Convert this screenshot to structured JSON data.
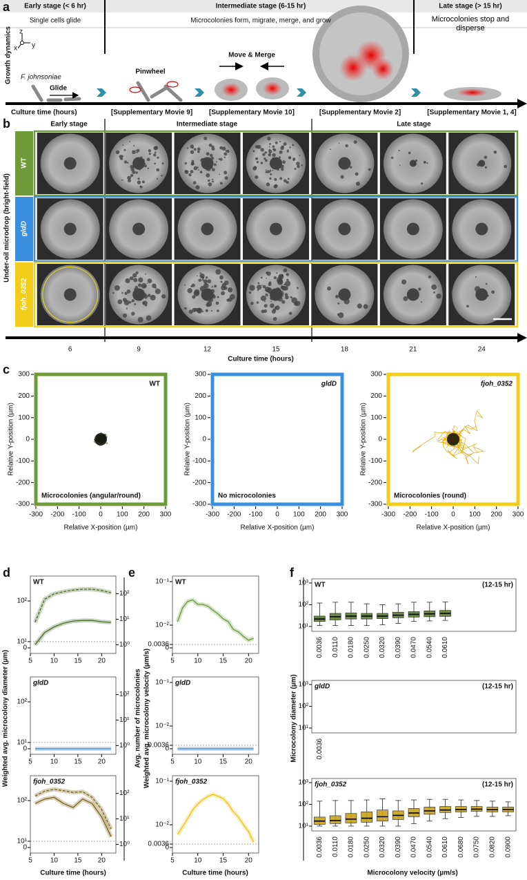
{
  "panel_a": {
    "label": "a",
    "stages": [
      {
        "title": "Early stage (< 6 hr)",
        "desc": "Single cells glide"
      },
      {
        "title": "Intermediate stage (6-15 hr)",
        "desc": "Microcolonies form, migrate, merge, and grow"
      },
      {
        "title": "Late stage (> 15 hr)",
        "desc": "Microcolonies stop and disperse"
      }
    ],
    "y_label": "Growth dynamics",
    "axis_labels": [
      "z",
      "x",
      "y"
    ],
    "organism": "F. johnsoniae",
    "steps": [
      "Glide",
      "Pinwheel",
      "Move & Merge"
    ],
    "x_label": "Culture time (hours)",
    "movies": [
      "[Supplementary Movie 9]",
      "[Supplementary Movie 10]",
      "[Supplementary Movie 2]",
      "[Supplementary Movie 1, 4]"
    ]
  },
  "panel_b": {
    "label": "b",
    "stages": [
      "Early stage",
      "Intermediate stage",
      "Late stage"
    ],
    "y_label": "Under-oil microdrop (bright-field)",
    "strains": [
      {
        "name": "WT",
        "color": "#6e9a3a"
      },
      {
        "name": "gldD",
        "color": "#3a8fde"
      },
      {
        "name": "fjoh_0352",
        "color": "#f2cd1a"
      }
    ],
    "times": [
      6,
      9,
      12,
      15,
      18,
      21,
      24
    ],
    "x_label": "Culture time (hours)"
  },
  "panel_c": {
    "label": "c",
    "plots": [
      {
        "name": "WT",
        "note": "Microcolonies (angular/round)",
        "color": "#6e9a3a",
        "trace": "#3f5f1c"
      },
      {
        "name": "gldD",
        "note": "No microcolonies",
        "color": "#3a8fde",
        "trace": null
      },
      {
        "name": "fjoh_0352",
        "note": "Microcolonies (round)",
        "color": "#f2cd1a",
        "trace": "#e0a800"
      }
    ],
    "xlim": [
      -300,
      300
    ],
    "ylim": [
      -300,
      300
    ],
    "xticks": [
      -300,
      -200,
      -100,
      0,
      100,
      200,
      300
    ],
    "yticks": [
      -300,
      -200,
      -100,
      0,
      100,
      200,
      300
    ],
    "x_label": "Relative X-position (µm)",
    "y_label": "Relative Y-position (µm)"
  },
  "panel_d": {
    "label": "d",
    "y_label": "Weighted avg. microcolony diameter (µm)",
    "y2_label": "Avg. number of microcolonies",
    "x_label": "Culture time (hours)",
    "xlim": [
      5,
      23
    ],
    "xticks": [
      5,
      10,
      15,
      20
    ],
    "ylim": [
      7,
      300
    ],
    "yticks": [
      {
        "value": 0,
        "label": "0"
      },
      {
        "value": 10,
        "label": "10¹"
      },
      {
        "value": 100,
        "label": "10²"
      }
    ],
    "y2lim": [
      0.75,
      300
    ],
    "y2ticks": [
      {
        "value": 1,
        "label": "10⁰"
      },
      {
        "value": 10,
        "label": "10¹"
      },
      {
        "value": 100,
        "label": "10²"
      }
    ],
    "x": [
      6,
      8,
      10,
      12,
      14,
      16,
      18,
      20,
      22
    ],
    "plots": [
      {
        "name": "WT",
        "series": [
          {
            "axis": "y",
            "color": "#4a6b2a",
            "dashed": true,
            "values": [
              30,
              110,
              150,
              170,
              185,
              195,
              195,
              180,
              160
            ]
          },
          {
            "axis": "y2",
            "color": "#4a6b2a",
            "dashed": false,
            "values": [
              1,
              3,
              5,
              7,
              8.5,
              9,
              9,
              8,
              7.5
            ]
          }
        ]
      },
      {
        "name": "gldD",
        "series": [
          {
            "axis": "y",
            "color": "#3a7fd0",
            "dashed": false,
            "values": [
              0,
              0,
              0,
              0,
              0,
              0,
              0,
              0,
              0
            ]
          }
        ]
      },
      {
        "name": "fjoh_0352",
        "series": [
          {
            "axis": "y",
            "color": "#7a6415",
            "dashed": true,
            "values": [
              130,
              170,
              190,
              175,
              160,
              165,
              120,
              60,
              20
            ]
          },
          {
            "axis": "y2",
            "color": "#7a6415",
            "dashed": false,
            "values": [
              40,
              60,
              70,
              40,
              28,
              60,
              40,
              12,
              2
            ]
          }
        ]
      }
    ]
  },
  "panel_e": {
    "label": "e",
    "y_label": "Weighted avg. microcolony velocity (µm/s)",
    "x_label": "Culture time (hours)",
    "xlim": [
      5,
      22
    ],
    "xticks": [
      5,
      10,
      15,
      20
    ],
    "ylim": [
      0.003,
      0.1
    ],
    "yticks": [
      {
        "value": 0,
        "label": "0"
      },
      0.0036,
      {
        "value": 0.01,
        "label": "10⁻²"
      },
      {
        "value": 0.1,
        "label": "10⁻¹"
      }
    ],
    "x": [
      6,
      7,
      8,
      9,
      10,
      11,
      12,
      13,
      14,
      15,
      16,
      17,
      18,
      19,
      20,
      21
    ],
    "plots": [
      {
        "name": "WT",
        "series": [
          {
            "color": "#6e9a3a",
            "values": [
              0.012,
              0.025,
              0.035,
              0.038,
              0.03,
              0.03,
              0.027,
              0.022,
              0.018,
              0.014,
              0.012,
              0.008,
              0.007,
              0.0055,
              0.0045,
              0.005
            ]
          }
        ]
      },
      {
        "name": "gldD",
        "series": [
          {
            "color": "#3a7fd0",
            "values": [
              0,
              0,
              0,
              0,
              0,
              0,
              0,
              0,
              0,
              0,
              0,
              0,
              0,
              0,
              0,
              0
            ]
          }
        ]
      },
      {
        "name": "fjoh_0352",
        "series": [
          {
            "color": "#f0c419",
            "values": [
              0.006,
              0.009,
              0.014,
              0.022,
              0.03,
              0.038,
              0.045,
              0.05,
              0.045,
              0.04,
              0.03,
              0.02,
              0.015,
              0.01,
              0.007,
              0.004
            ]
          }
        ]
      }
    ]
  },
  "panel_f": {
    "label": "f",
    "y_label": "Microcolony diameter (µm)",
    "x_label": "Microcolony velocity (µm/s)",
    "ylim": [
      8,
      1000
    ],
    "yticks": [
      {
        "value": 10,
        "label": "10¹"
      },
      {
        "value": 100,
        "label": "10²"
      },
      {
        "value": 1000,
        "label": "10³"
      }
    ],
    "plots": [
      {
        "name": "WT",
        "note": "(12-15 hr)",
        "color": "#5d7d32",
        "categories": [
          "0.0036",
          "0.0110",
          "0.0180",
          "0.0250",
          "0.0320",
          "0.0390",
          "0.0470",
          "0.0540",
          "0.0610"
        ],
        "median": [
          22,
          28,
          30,
          30,
          30,
          33,
          36,
          38,
          40
        ],
        "q1": [
          17,
          20,
          22,
          22,
          23,
          25,
          27,
          28,
          29
        ],
        "q3": [
          30,
          40,
          42,
          40,
          40,
          45,
          48,
          52,
          55
        ],
        "low": [
          11,
          11,
          11,
          11,
          12,
          14,
          17,
          18,
          19
        ],
        "high": [
          120,
          130,
          130,
          110,
          100,
          110,
          130,
          130,
          135
        ]
      },
      {
        "name": "gldD",
        "note": "(12-15 hr)",
        "color": "#3a7fd0",
        "categories": [
          "0.0036"
        ],
        "median": [
          null
        ],
        "q1": [
          null
        ],
        "q3": [
          null
        ],
        "low": [
          null
        ],
        "high": [
          null
        ]
      },
      {
        "name": "fjoh_0352",
        "note": "(12-15 hr)",
        "color": "#c9a21c",
        "categories": [
          "0.0036",
          "0.0110",
          "0.0180",
          "0.0250",
          "0.0320",
          "0.0390",
          "0.0470",
          "0.0540",
          "0.0610",
          "0.0680",
          "0.0750",
          "0.0820",
          "0.0900"
        ],
        "median": [
          17,
          18,
          21,
          23,
          27,
          31,
          40,
          50,
          55,
          58,
          60,
          57,
          58
        ],
        "q1": [
          12,
          13,
          14,
          15,
          17,
          20,
          27,
          35,
          42,
          45,
          48,
          45,
          45
        ],
        "q3": [
          26,
          30,
          38,
          45,
          55,
          50,
          65,
          75,
          80,
          80,
          80,
          75,
          75
        ],
        "low": [
          10,
          10,
          10,
          10,
          10,
          10,
          13,
          17,
          22,
          25,
          28,
          28,
          30
        ],
        "high": [
          140,
          150,
          150,
          160,
          180,
          150,
          160,
          170,
          170,
          160,
          150,
          140,
          130
        ]
      }
    ]
  }
}
